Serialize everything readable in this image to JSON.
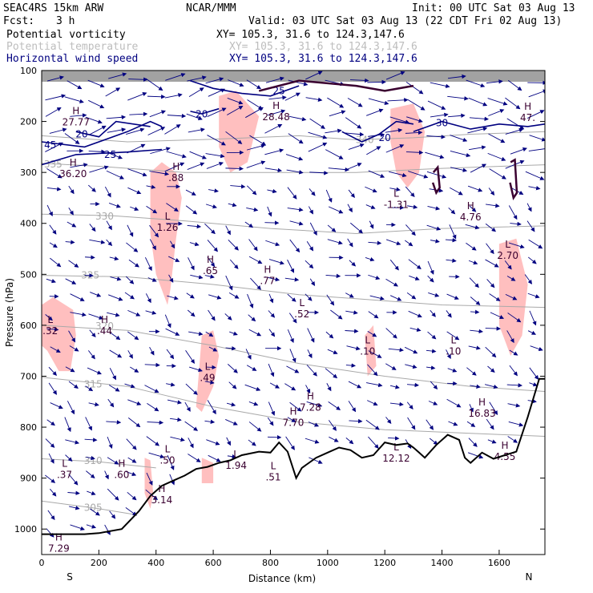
{
  "header": {
    "model": "SEAC4RS 15km ARW",
    "center": "NCAR/MMM",
    "init": "Init: 00 UTC Sat 03 Aug 13",
    "fcst_label": "Fcst:",
    "fcst_value": "3 h",
    "valid": "Valid: 03 UTC Sat 03 Aug 13 (22 CDT Fri 02 Aug 13)",
    "fields": [
      {
        "name": "Potential vorticity",
        "xy": "XY= 105.3, 31.6 to 124.3,147.6",
        "color": "#000000"
      },
      {
        "name": "Potential temperature",
        "xy": "XY= 105.3, 31.6 to 124.3,147.6",
        "color": "#bdbdbd"
      },
      {
        "name": "Horizontal wind speed",
        "xy": "XY= 105.3, 31.6 to 124.3,147.6",
        "color": "#000080"
      }
    ]
  },
  "chart_data": {
    "type": "cross-section",
    "xlabel": "Distance (km)",
    "ylabel": "Pressure (hPa)",
    "xlim": [
      0,
      1760
    ],
    "ylim": [
      1050,
      100
    ],
    "x_ticks": [
      "0",
      "200",
      "400",
      "600",
      "800",
      "1000",
      "1200",
      "1400",
      "1600"
    ],
    "x_tick_values": [
      0,
      200,
      400,
      600,
      800,
      1000,
      1200,
      1400,
      1600
    ],
    "y_ticks": [
      "100",
      "200",
      "300",
      "400",
      "500",
      "600",
      "700",
      "800",
      "900",
      "1000"
    ],
    "y_tick_values": [
      100,
      200,
      300,
      400,
      500,
      600,
      700,
      800,
      900,
      1000
    ],
    "left_end_label": "S",
    "right_end_label": "N",
    "colors": {
      "wind": "#000080",
      "theta": "#a9a9a9",
      "pv_fill": "#ffbfbf",
      "pv_contour": "#3a0030",
      "terrain": "#000000"
    },
    "terrain": [
      [
        0,
        1010
      ],
      [
        60,
        1010
      ],
      [
        150,
        1010
      ],
      [
        200,
        1008
      ],
      [
        280,
        1000
      ],
      [
        340,
        965
      ],
      [
        380,
        935
      ],
      [
        420,
        915
      ],
      [
        460,
        905
      ],
      [
        500,
        895
      ],
      [
        540,
        882
      ],
      [
        580,
        878
      ],
      [
        620,
        870
      ],
      [
        660,
        865
      ],
      [
        700,
        855
      ],
      [
        760,
        848
      ],
      [
        800,
        850
      ],
      [
        830,
        830
      ],
      [
        860,
        848
      ],
      [
        890,
        900
      ],
      [
        910,
        880
      ],
      [
        960,
        860
      ],
      [
        1000,
        850
      ],
      [
        1040,
        840
      ],
      [
        1080,
        845
      ],
      [
        1120,
        860
      ],
      [
        1160,
        855
      ],
      [
        1200,
        830
      ],
      [
        1240,
        835
      ],
      [
        1280,
        832
      ],
      [
        1300,
        840
      ],
      [
        1320,
        850
      ],
      [
        1340,
        860
      ],
      [
        1380,
        835
      ],
      [
        1420,
        815
      ],
      [
        1460,
        825
      ],
      [
        1480,
        860
      ],
      [
        1500,
        870
      ],
      [
        1540,
        850
      ],
      [
        1580,
        862
      ],
      [
        1620,
        855
      ],
      [
        1660,
        848
      ],
      [
        1700,
        780
      ],
      [
        1740,
        705
      ],
      [
        1760,
        705
      ]
    ],
    "theta_contours": [
      {
        "label": "340",
        "points": [
          [
            0,
            228
          ],
          [
            300,
            240
          ],
          [
            600,
            235
          ],
          [
            900,
            228
          ],
          [
            1100,
            236
          ],
          [
            1300,
            232
          ],
          [
            1500,
            225
          ],
          [
            1760,
            220
          ]
        ],
        "label_at": [
          1130,
          236
        ]
      },
      {
        "label": "335",
        "points": [
          [
            0,
            282
          ],
          [
            200,
            288
          ],
          [
            500,
            300
          ],
          [
            800,
            300
          ],
          [
            1100,
            300
          ],
          [
            1400,
            292
          ],
          [
            1760,
            285
          ]
        ],
        "label_at": [
          40,
          284
        ]
      },
      {
        "label": "330",
        "points": [
          [
            0,
            382
          ],
          [
            250,
            385
          ],
          [
            500,
            395
          ],
          [
            800,
            410
          ],
          [
            1100,
            420
          ],
          [
            1400,
            410
          ],
          [
            1760,
            405
          ]
        ],
        "label_at": [
          220,
          386
        ]
      },
      {
        "label": "325",
        "points": [
          [
            0,
            502
          ],
          [
            300,
            505
          ],
          [
            600,
            520
          ],
          [
            900,
            540
          ],
          [
            1100,
            548
          ],
          [
            1400,
            560
          ],
          [
            1760,
            565
          ]
        ],
        "label_at": [
          170,
          502
        ]
      },
      {
        "label": "320",
        "points": [
          [
            0,
            600
          ],
          [
            300,
            610
          ],
          [
            600,
            640
          ],
          [
            900,
            675
          ],
          [
            1200,
            700
          ],
          [
            1500,
            720
          ],
          [
            1760,
            730
          ]
        ],
        "label_at": [
          220,
          602
        ]
      },
      {
        "label": "315",
        "points": [
          [
            0,
            702
          ],
          [
            300,
            720
          ],
          [
            600,
            760
          ],
          [
            900,
            790
          ],
          [
            1200,
            805
          ],
          [
            1500,
            812
          ],
          [
            1760,
            818
          ]
        ],
        "label_at": [
          180,
          716
        ]
      },
      {
        "label": "310",
        "points": [
          [
            0,
            862
          ],
          [
            200,
            868
          ],
          [
            400,
            880
          ]
        ],
        "label_at": [
          180,
          866
        ]
      },
      {
        "label": "305",
        "points": [
          [
            0,
            945
          ],
          [
            200,
            960
          ],
          [
            330,
            972
          ]
        ],
        "label_at": [
          180,
          958
        ]
      }
    ],
    "pv_regions": [
      {
        "points": [
          [
            0,
            560
          ],
          [
            40,
            545
          ],
          [
            110,
            570
          ],
          [
            120,
            620
          ],
          [
            100,
            690
          ],
          [
            60,
            690
          ],
          [
            20,
            650
          ],
          [
            0,
            640
          ]
        ]
      },
      {
        "points": [
          [
            380,
            300
          ],
          [
            420,
            280
          ],
          [
            470,
            300
          ],
          [
            490,
            350
          ],
          [
            470,
            430
          ],
          [
            450,
            530
          ],
          [
            440,
            560
          ],
          [
            400,
            500
          ],
          [
            380,
            420
          ]
        ]
      },
      {
        "points": [
          [
            560,
            620
          ],
          [
            600,
            610
          ],
          [
            620,
            660
          ],
          [
            600,
            720
          ],
          [
            560,
            770
          ],
          [
            540,
            760
          ],
          [
            550,
            690
          ]
        ]
      },
      {
        "points": [
          [
            620,
            150
          ],
          [
            680,
            140
          ],
          [
            760,
            190
          ],
          [
            720,
            280
          ],
          [
            660,
            300
          ],
          [
            620,
            250
          ]
        ]
      },
      {
        "points": [
          [
            1220,
            175
          ],
          [
            1300,
            165
          ],
          [
            1340,
            220
          ],
          [
            1320,
            300
          ],
          [
            1280,
            330
          ],
          [
            1240,
            300
          ],
          [
            1220,
            240
          ]
        ]
      },
      {
        "points": [
          [
            1600,
            440
          ],
          [
            1660,
            430
          ],
          [
            1700,
            520
          ],
          [
            1680,
            620
          ],
          [
            1640,
            660
          ],
          [
            1600,
            600
          ]
        ]
      },
      {
        "points": [
          [
            560,
            860
          ],
          [
            600,
            870
          ],
          [
            600,
            910
          ],
          [
            560,
            910
          ]
        ]
      },
      {
        "points": [
          [
            360,
            860
          ],
          [
            380,
            865
          ],
          [
            390,
            930
          ],
          [
            380,
            960
          ],
          [
            360,
            930
          ]
        ]
      },
      {
        "points": [
          [
            1130,
            620
          ],
          [
            1160,
            600
          ],
          [
            1170,
            680
          ],
          [
            1140,
            700
          ]
        ]
      }
    ],
    "pv_contours": [
      {
        "points": [
          [
            1370,
            300
          ],
          [
            1385,
            290
          ],
          [
            1392,
            330
          ],
          [
            1380,
            340
          ],
          [
            1368,
            320
          ]
        ]
      },
      {
        "points": [
          [
            1640,
            280
          ],
          [
            1655,
            275
          ],
          [
            1662,
            340
          ],
          [
            1650,
            350
          ],
          [
            1638,
            320
          ]
        ]
      },
      {
        "points": [
          [
            760,
            140
          ],
          [
            900,
            120
          ],
          [
            1100,
            130
          ],
          [
            1200,
            140
          ],
          [
            1300,
            130
          ]
        ]
      }
    ],
    "wind_contours": [
      {
        "label": "45",
        "points": [
          [
            0,
            240
          ],
          [
            150,
            250
          ],
          [
            300,
            220
          ],
          [
            380,
            200
          ],
          [
            420,
            210
          ]
        ],
        "label_at": [
          30,
          246
        ]
      },
      {
        "label": "25",
        "points": [
          [
            0,
            285
          ],
          [
            120,
            265
          ],
          [
            300,
            260
          ],
          [
            420,
            255
          ]
        ],
        "label_at": [
          240,
          265
        ]
      },
      {
        "label": "20",
        "points": [
          [
            120,
            220
          ],
          [
            200,
            230
          ],
          [
            260,
            200
          ],
          [
            380,
            210
          ]
        ],
        "label_at": [
          140,
          225
        ]
      },
      {
        "label": "30",
        "points": [
          [
            1300,
            220
          ],
          [
            1400,
            200
          ],
          [
            1500,
            215
          ],
          [
            1600,
            205
          ],
          [
            1700,
            210
          ],
          [
            1760,
            205
          ]
        ],
        "label_at": [
          1400,
          203
        ]
      },
      {
        "label": "25",
        "points": [
          [
            520,
            120
          ],
          [
            600,
            135
          ],
          [
            700,
            145
          ],
          [
            800,
            150
          ],
          [
            900,
            130
          ]
        ],
        "label_at": [
          830,
          140
        ]
      },
      {
        "label": "20",
        "points": [
          [
            1050,
            220
          ],
          [
            1120,
            240
          ],
          [
            1180,
            225
          ],
          [
            1240,
            200
          ],
          [
            1300,
            205
          ]
        ],
        "label_at": [
          1200,
          232
        ]
      },
      {
        "label": "20",
        "points": [
          [
            520,
            180
          ],
          [
            560,
            185
          ],
          [
            620,
            175
          ]
        ],
        "label_at": [
          560,
          186
        ]
      }
    ],
    "extrema": [
      {
        "type": "H",
        "value": "27.77",
        "x": 120,
        "p": 198
      },
      {
        "type": "H",
        "value": "36.20",
        "x": 110,
        "p": 300
      },
      {
        "type": "H",
        "value": ".88",
        "x": 470,
        "p": 308
      },
      {
        "type": "H",
        "value": "28.48",
        "x": 820,
        "p": 188
      },
      {
        "type": "L",
        "value": "1.26",
        "x": 440,
        "p": 405
      },
      {
        "type": "H",
        "value": ".65",
        "x": 590,
        "p": 490
      },
      {
        "type": "H",
        "value": ".77",
        "x": 790,
        "p": 510
      },
      {
        "type": "L",
        "value": ".32",
        "x": 30,
        "p": 608
      },
      {
        "type": "H",
        "value": ".44",
        "x": 220,
        "p": 608
      },
      {
        "type": "L",
        "value": ".52",
        "x": 910,
        "p": 575
      },
      {
        "type": "L",
        "value": ".10",
        "x": 1140,
        "p": 648
      },
      {
        "type": "L",
        "value": ".10",
        "x": 1440,
        "p": 648
      },
      {
        "type": "L",
        "value": ".49",
        "x": 580,
        "p": 700
      },
      {
        "type": "H",
        "value": "7.28",
        "x": 940,
        "p": 758
      },
      {
        "type": "H",
        "value": "7.70",
        "x": 880,
        "p": 788
      },
      {
        "type": "H",
        "value": "16.83",
        "x": 1540,
        "p": 770
      },
      {
        "type": "L",
        "value": "-1.31",
        "x": 1240,
        "p": 360
      },
      {
        "type": "H",
        "value": "4.76",
        "x": 1500,
        "p": 385
      },
      {
        "type": "L",
        "value": "2.70",
        "x": 1630,
        "p": 460
      },
      {
        "type": "H",
        "value": "47.",
        "x": 1700,
        "p": 190
      },
      {
        "type": "L",
        "value": "12.12",
        "x": 1240,
        "p": 858
      },
      {
        "type": "L",
        "value": "1.94",
        "x": 680,
        "p": 872
      },
      {
        "type": "L",
        "value": ".50",
        "x": 440,
        "p": 862
      },
      {
        "type": "L",
        "value": ".37",
        "x": 80,
        "p": 890
      },
      {
        "type": "H",
        "value": ".60",
        "x": 280,
        "p": 890
      },
      {
        "type": "H",
        "value": "3.14",
        "x": 420,
        "p": 940
      },
      {
        "type": "H",
        "value": "7.29",
        "x": 60,
        "p": 1035
      },
      {
        "type": "H",
        "value": "4.55",
        "x": 1620,
        "p": 855
      },
      {
        "type": "L",
        "value": ".51",
        "x": 810,
        "p": 895
      }
    ]
  }
}
